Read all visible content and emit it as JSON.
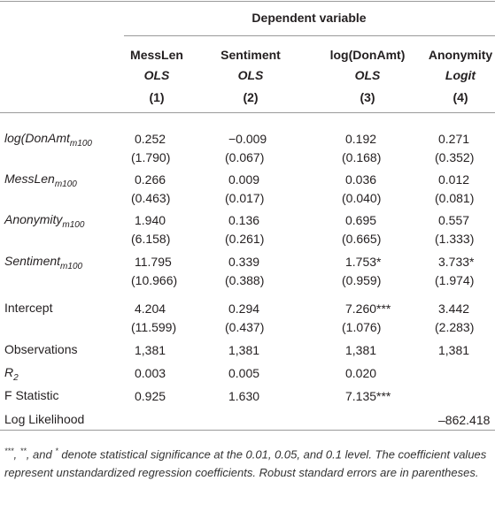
{
  "header": {
    "title": "Dependent variable",
    "columns": [
      {
        "name": "MessLen",
        "method": "OLS",
        "number": "(1)"
      },
      {
        "name": "Sentiment",
        "method": "OLS",
        "number": "(2)"
      },
      {
        "name": "log(DonAmt)",
        "method": "OLS",
        "number": "(3)"
      },
      {
        "name": "Anonymity",
        "method": "Logit",
        "number": "(4)"
      }
    ]
  },
  "table": {
    "rows": [
      {
        "label": "log(DonAmt",
        "sub": "m100",
        "italic": true,
        "values": [
          "0.252",
          "−0.009",
          "0.192",
          "0.271"
        ],
        "se": [
          "(1.790)",
          "(0.067)",
          "(0.168)",
          "(0.352)"
        ]
      },
      {
        "label": "MessLen",
        "sub": "m100",
        "italic": true,
        "values": [
          "0.266",
          "0.009",
          "0.036",
          "0.012"
        ],
        "se": [
          "(0.463)",
          "(0.017)",
          "(0.040)",
          "(0.081)"
        ]
      },
      {
        "label": "Anonymity",
        "sub": "m100",
        "italic": true,
        "values": [
          "1.940",
          "0.136",
          "0.695",
          "0.557"
        ],
        "se": [
          "(6.158)",
          "(0.261)",
          "(0.665)",
          "(1.333)"
        ]
      },
      {
        "label": "Sentiment",
        "sub": "m100",
        "italic": true,
        "values": [
          "11.795",
          "0.339",
          "1.753*",
          "3.733*"
        ],
        "se": [
          "(10.966)",
          "(0.388)",
          "(0.959)",
          "(1.974)"
        ]
      },
      {
        "label": "Intercept",
        "values": [
          "4.204",
          "0.294",
          "7.260***",
          "3.442"
        ],
        "se": [
          "(11.599)",
          "(0.437)",
          "(1.076)",
          "(2.283)"
        ]
      },
      {
        "label": "Observations",
        "values": [
          "1,381",
          "1,381",
          "1,381",
          "1,381"
        ]
      },
      {
        "label": "R",
        "sub": "2",
        "italic": true,
        "values": [
          "0.003",
          "0.005",
          "0.020",
          null
        ]
      },
      {
        "label": "F Statistic",
        "values": [
          "0.925",
          "1.630",
          "7.135***",
          null
        ]
      },
      {
        "label": "Log Likelihood",
        "values": [
          null,
          null,
          null,
          "–862.418"
        ]
      }
    ]
  },
  "footnote": {
    "parts": [
      {
        "sup": "***"
      },
      {
        "text": ", "
      },
      {
        "sup": "**"
      },
      {
        "text": ", and "
      },
      {
        "sup": "*"
      },
      {
        "text": " denote statistical significance at the 0.01, 0.05, and 0.1 level. The coefficient values represent unstandardized regression coefficients. Robust standard errors are in parentheses."
      }
    ]
  }
}
